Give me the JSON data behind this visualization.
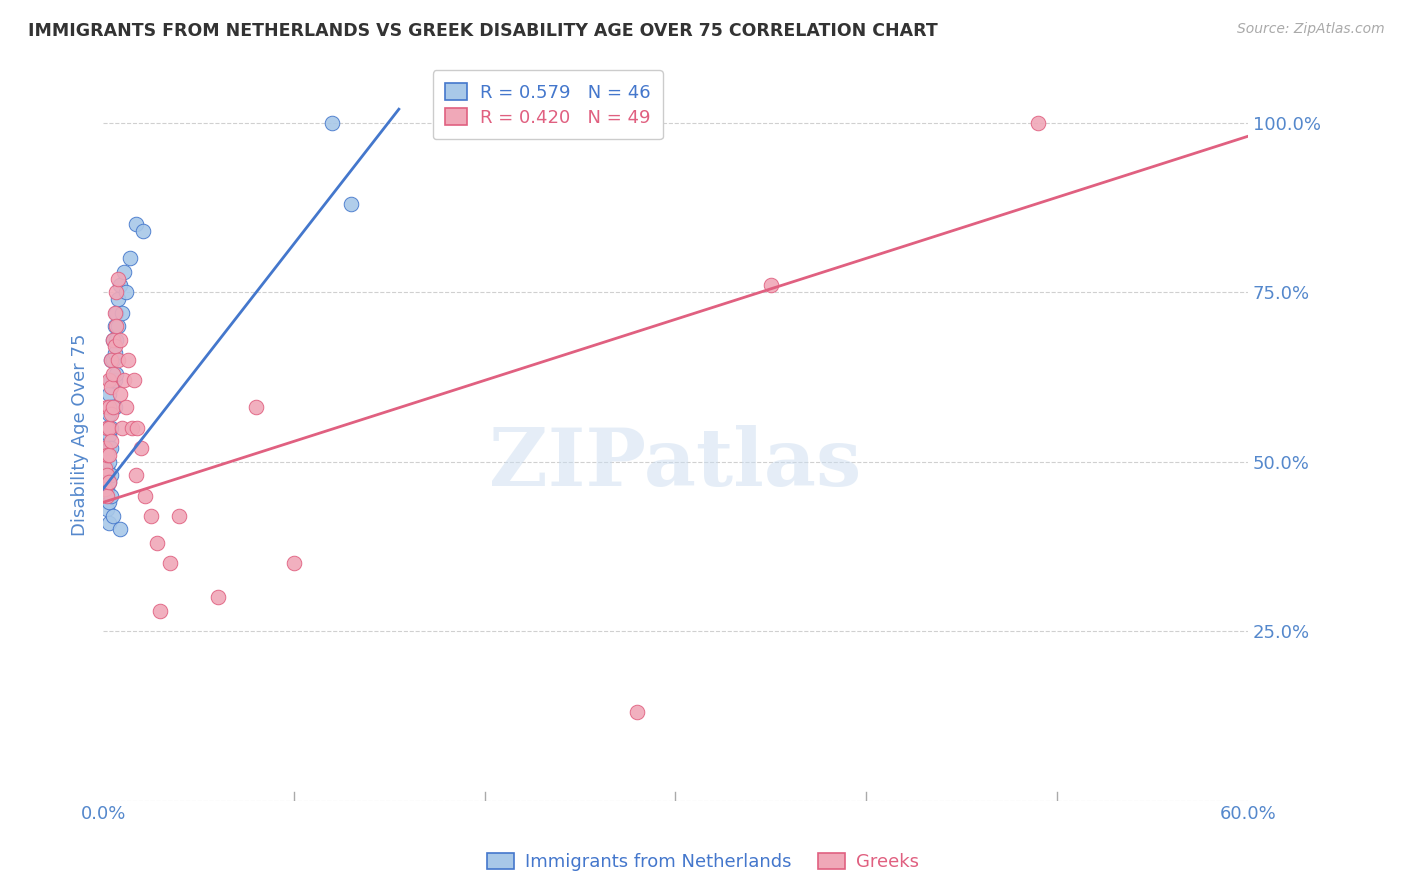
{
  "title": "IMMIGRANTS FROM NETHERLANDS VS GREEK DISABILITY AGE OVER 75 CORRELATION CHART",
  "source": "Source: ZipAtlas.com",
  "ylabel": "Disability Age Over 75",
  "legend_labels": [
    "Immigrants from Netherlands",
    "Greeks"
  ],
  "r_netherlands": 0.579,
  "n_netherlands": 46,
  "r_greeks": 0.42,
  "n_greeks": 49,
  "xlim": [
    0.0,
    0.6
  ],
  "ylim": [
    0.0,
    1.08
  ],
  "background_color": "#ffffff",
  "grid_color": "#d0d0d0",
  "netherlands_color": "#a8c8e8",
  "greeks_color": "#f0a8b8",
  "netherlands_line_color": "#4477cc",
  "greeks_line_color": "#e06080",
  "title_color": "#333333",
  "axis_label_color": "#5588cc",
  "nl_x": [
    0.001,
    0.001,
    0.002,
    0.002,
    0.002,
    0.002,
    0.002,
    0.003,
    0.003,
    0.003,
    0.003,
    0.003,
    0.003,
    0.003,
    0.003,
    0.004,
    0.004,
    0.004,
    0.004,
    0.004,
    0.004,
    0.004,
    0.005,
    0.005,
    0.005,
    0.005,
    0.005,
    0.006,
    0.006,
    0.006,
    0.006,
    0.007,
    0.007,
    0.007,
    0.008,
    0.008,
    0.009,
    0.009,
    0.01,
    0.011,
    0.012,
    0.014,
    0.017,
    0.021,
    0.12,
    0.13
  ],
  "nl_y": [
    0.5,
    0.47,
    0.55,
    0.53,
    0.49,
    0.46,
    0.43,
    0.6,
    0.57,
    0.54,
    0.52,
    0.5,
    0.47,
    0.44,
    0.41,
    0.65,
    0.62,
    0.58,
    0.55,
    0.52,
    0.48,
    0.45,
    0.68,
    0.65,
    0.62,
    0.58,
    0.42,
    0.7,
    0.66,
    0.62,
    0.58,
    0.72,
    0.68,
    0.63,
    0.74,
    0.7,
    0.76,
    0.4,
    0.72,
    0.78,
    0.75,
    0.8,
    0.85,
    0.84,
    1.0,
    0.88
  ],
  "gr_x": [
    0.001,
    0.001,
    0.001,
    0.002,
    0.002,
    0.002,
    0.002,
    0.002,
    0.003,
    0.003,
    0.003,
    0.003,
    0.003,
    0.004,
    0.004,
    0.004,
    0.004,
    0.005,
    0.005,
    0.005,
    0.006,
    0.006,
    0.007,
    0.007,
    0.008,
    0.008,
    0.009,
    0.009,
    0.01,
    0.011,
    0.012,
    0.013,
    0.015,
    0.016,
    0.017,
    0.018,
    0.02,
    0.022,
    0.025,
    0.028,
    0.03,
    0.035,
    0.04,
    0.06,
    0.08,
    0.1,
    0.28,
    0.35,
    0.49
  ],
  "gr_y": [
    0.52,
    0.49,
    0.46,
    0.58,
    0.55,
    0.51,
    0.48,
    0.45,
    0.62,
    0.58,
    0.55,
    0.51,
    0.47,
    0.65,
    0.61,
    0.57,
    0.53,
    0.68,
    0.63,
    0.58,
    0.72,
    0.67,
    0.75,
    0.7,
    0.77,
    0.65,
    0.68,
    0.6,
    0.55,
    0.62,
    0.58,
    0.65,
    0.55,
    0.62,
    0.48,
    0.55,
    0.52,
    0.45,
    0.42,
    0.38,
    0.28,
    0.35,
    0.42,
    0.3,
    0.58,
    0.35,
    0.13,
    0.76,
    1.0
  ],
  "nl_line_x": [
    0.0,
    0.155
  ],
  "nl_line_y": [
    0.46,
    1.02
  ],
  "gr_line_x": [
    0.0,
    0.6
  ],
  "gr_line_y": [
    0.44,
    0.98
  ]
}
